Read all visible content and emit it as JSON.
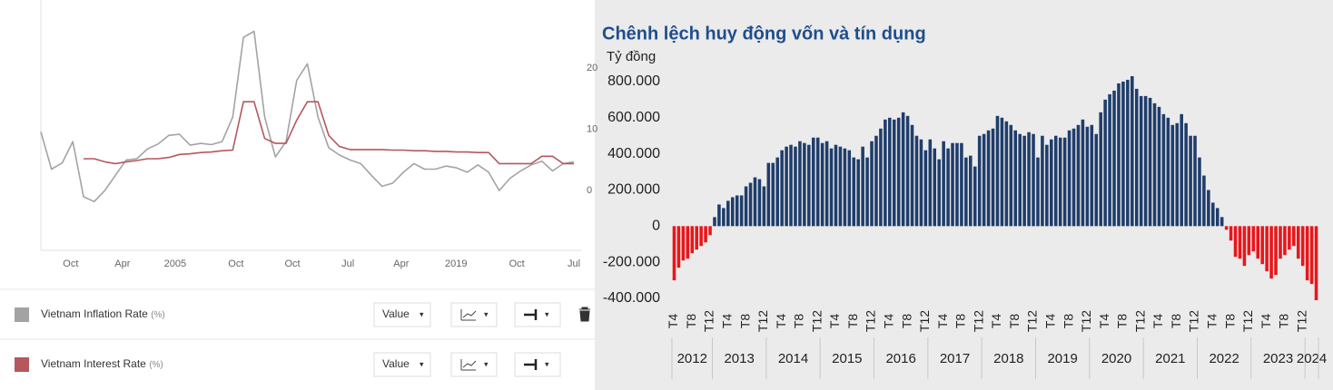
{
  "chart_data": [
    {
      "type": "line",
      "x": [
        0,
        2,
        4,
        6,
        8,
        10,
        12,
        14,
        16,
        18,
        20,
        22,
        24,
        26,
        28,
        30,
        32,
        34,
        36,
        38,
        40,
        42,
        44,
        46,
        48,
        50,
        52,
        54,
        56,
        58,
        60,
        62,
        64,
        66,
        68,
        70,
        72,
        74,
        76,
        78,
        80,
        82,
        84,
        86,
        88,
        90,
        92,
        94,
        96,
        98,
        100
      ],
      "xlim": [
        0,
        100
      ],
      "xticks": [
        {
          "value": 5.6,
          "label": "Oct"
        },
        {
          "value": 15.3,
          "label": "Apr"
        },
        {
          "value": 25.2,
          "label": "2005"
        },
        {
          "value": 36.6,
          "label": "Oct"
        },
        {
          "value": 47.2,
          "label": "Oct"
        },
        {
          "value": 57.6,
          "label": "Jul"
        },
        {
          "value": 67.6,
          "label": "Apr"
        },
        {
          "value": 77.9,
          "label": "2019"
        },
        {
          "value": 89.3,
          "label": "Oct"
        },
        {
          "value": 100,
          "label": "Jul"
        }
      ],
      "ylim": [
        -9.6,
        31.1
      ],
      "yticks": [
        0,
        10,
        20
      ],
      "series": [
        {
          "name": "Vietnam Inflation Rate",
          "unit": "(%)",
          "mode": "Value",
          "color": "#a3a3a3",
          "values": [
            9.6,
            3.5,
            4.5,
            8,
            -1,
            -1.8,
            0,
            2.5,
            5,
            5.2,
            6.8,
            7.6,
            9,
            9.2,
            7.4,
            7.7,
            7.5,
            8,
            12,
            25,
            26,
            12,
            5.5,
            8,
            18,
            20.7,
            12,
            7,
            5.8,
            5,
            4.4,
            2.5,
            0.7,
            1.2,
            3,
            4.4,
            3.5,
            3.5,
            4,
            3.7,
            3,
            4.2,
            3,
            0,
            2,
            3.2,
            4.2,
            4.8,
            3.2,
            4.4,
            4.7
          ]
        },
        {
          "name": "Vietnam Interest Rate",
          "unit": "(%)",
          "mode": "Value",
          "color": "#b5575c",
          "values": [
            null,
            null,
            null,
            null,
            5.2,
            5.2,
            4.7,
            4.4,
            4.7,
            4.9,
            5.2,
            5.2,
            5.4,
            5.9,
            6,
            6.2,
            6.3,
            6.5,
            6.6,
            14.5,
            14.5,
            8.5,
            7.7,
            7.7,
            11.5,
            14.5,
            14.5,
            9,
            7.2,
            6.7,
            6.7,
            6.7,
            6.7,
            6.6,
            6.6,
            6.5,
            6.5,
            6.4,
            6.4,
            6.3,
            6.3,
            6.2,
            6.2,
            4.4,
            4.4,
            4.4,
            4.4,
            5.6,
            5.6,
            4.4,
            4.4
          ]
        }
      ]
    },
    {
      "type": "bar",
      "title": "Chênh lệch huy động vốn và tín dụng",
      "y_label": "Tỷ đồng",
      "color": "#1f3d6b",
      "negative_color": "#e8161b",
      "categories": [
        "2012-04",
        "2012-05",
        "2012-06",
        "2012-07",
        "2012-08",
        "2012-09",
        "2012-10",
        "2012-11",
        "2012-12",
        "2013-01",
        "2013-02",
        "2013-03",
        "2013-04",
        "2013-05",
        "2013-06",
        "2013-07",
        "2013-08",
        "2013-09",
        "2013-10",
        "2013-11",
        "2013-12",
        "2014-01",
        "2014-02",
        "2014-03",
        "2014-04",
        "2014-05",
        "2014-06",
        "2014-07",
        "2014-08",
        "2014-09",
        "2014-10",
        "2014-11",
        "2014-12",
        "2015-01",
        "2015-02",
        "2015-03",
        "2015-04",
        "2015-05",
        "2015-06",
        "2015-07",
        "2015-08",
        "2015-09",
        "2015-10",
        "2015-11",
        "2015-12",
        "2016-01",
        "2016-02",
        "2016-03",
        "2016-04",
        "2016-05",
        "2016-06",
        "2016-07",
        "2016-08",
        "2016-09",
        "2016-10",
        "2016-11",
        "2016-12",
        "2017-01",
        "2017-02",
        "2017-03",
        "2017-04",
        "2017-05",
        "2017-06",
        "2017-07",
        "2017-08",
        "2017-09",
        "2017-10",
        "2017-11",
        "2017-12",
        "2018-01",
        "2018-02",
        "2018-03",
        "2018-04",
        "2018-05",
        "2018-06",
        "2018-07",
        "2018-08",
        "2018-09",
        "2018-10",
        "2018-11",
        "2018-12",
        "2019-01",
        "2019-02",
        "2019-03",
        "2019-04",
        "2019-05",
        "2019-06",
        "2019-07",
        "2019-08",
        "2019-09",
        "2019-10",
        "2019-11",
        "2019-12",
        "2020-01",
        "2020-02",
        "2020-03",
        "2020-04",
        "2020-05",
        "2020-06",
        "2020-07",
        "2020-08",
        "2020-09",
        "2020-10",
        "2020-11",
        "2020-12",
        "2021-01",
        "2021-02",
        "2021-03",
        "2021-04",
        "2021-05",
        "2021-06",
        "2021-07",
        "2021-08",
        "2021-09",
        "2021-10",
        "2021-11",
        "2021-12",
        "2022-01",
        "2022-02",
        "2022-03",
        "2022-04",
        "2022-05",
        "2022-06",
        "2022-07",
        "2022-08",
        "2022-09",
        "2022-10",
        "2022-11",
        "2022-12",
        "2023-01",
        "2023-02",
        "2023-03",
        "2023-04",
        "2023-05",
        "2023-06",
        "2023-07",
        "2023-08",
        "2023-09",
        "2023-10",
        "2023-11",
        "2023-12",
        "2024-01",
        "2024-02",
        "2024-03"
      ],
      "values": [
        -300000,
        -230000,
        -190000,
        -180000,
        -150000,
        -130000,
        -110000,
        -90000,
        -50000,
        50000,
        120000,
        100000,
        140000,
        160000,
        170000,
        170000,
        220000,
        240000,
        270000,
        260000,
        220000,
        350000,
        350000,
        380000,
        420000,
        440000,
        450000,
        440000,
        470000,
        460000,
        450000,
        490000,
        490000,
        460000,
        470000,
        430000,
        450000,
        440000,
        430000,
        420000,
        380000,
        370000,
        440000,
        380000,
        470000,
        500000,
        540000,
        590000,
        600000,
        590000,
        600000,
        630000,
        610000,
        560000,
        500000,
        480000,
        420000,
        480000,
        430000,
        370000,
        470000,
        430000,
        460000,
        460000,
        460000,
        380000,
        390000,
        330000,
        500000,
        510000,
        530000,
        540000,
        610000,
        600000,
        580000,
        560000,
        530000,
        510000,
        500000,
        520000,
        510000,
        380000,
        500000,
        450000,
        480000,
        500000,
        490000,
        490000,
        530000,
        540000,
        560000,
        590000,
        550000,
        560000,
        510000,
        630000,
        700000,
        730000,
        750000,
        790000,
        800000,
        810000,
        830000,
        760000,
        720000,
        720000,
        710000,
        680000,
        660000,
        620000,
        600000,
        560000,
        570000,
        620000,
        570000,
        500000,
        500000,
        380000,
        280000,
        200000,
        130000,
        100000,
        50000,
        -20000,
        -80000,
        -170000,
        -180000,
        -220000,
        -160000,
        -140000,
        -180000,
        -210000,
        -250000,
        -290000,
        -270000,
        -180000,
        -160000,
        -130000,
        -110000,
        -180000,
        -220000,
        -300000,
        -320000,
        -410000
      ],
      "xticks": [
        {
          "value": "2012-04",
          "label": "T4"
        },
        {
          "value": "2012-08",
          "label": "T8"
        },
        {
          "value": "2012-12",
          "label": "T12"
        },
        {
          "value": "2013-04",
          "label": "T4"
        },
        {
          "value": "2013-08",
          "label": "T8"
        },
        {
          "value": "2013-12",
          "label": "T12"
        },
        {
          "value": "2014-04",
          "label": "T4"
        },
        {
          "value": "2014-08",
          "label": "T8"
        },
        {
          "value": "2014-12",
          "label": "T12"
        },
        {
          "value": "2015-04",
          "label": "T4"
        },
        {
          "value": "2015-08",
          "label": "T8"
        },
        {
          "value": "2015-12",
          "label": "T12"
        },
        {
          "value": "2016-04",
          "label": "T4"
        },
        {
          "value": "2016-08",
          "label": "T8"
        },
        {
          "value": "2016-12",
          "label": "T12"
        },
        {
          "value": "2017-04",
          "label": "T4"
        },
        {
          "value": "2017-08",
          "label": "T8"
        },
        {
          "value": "2017-12",
          "label": "T12"
        },
        {
          "value": "2018-04",
          "label": "T4"
        },
        {
          "value": "2018-08",
          "label": "T8"
        },
        {
          "value": "2018-12",
          "label": "T12"
        },
        {
          "value": "2019-04",
          "label": "T4"
        },
        {
          "value": "2019-08",
          "label": "T8"
        },
        {
          "value": "2019-12",
          "label": "T12"
        },
        {
          "value": "2020-04",
          "label": "T4"
        },
        {
          "value": "2020-08",
          "label": "T8"
        },
        {
          "value": "2020-12",
          "label": "T12"
        },
        {
          "value": "2021-04",
          "label": "T4"
        },
        {
          "value": "2021-08",
          "label": "T8"
        },
        {
          "value": "2021-12",
          "label": "T12"
        },
        {
          "value": "2022-04",
          "label": "T4"
        },
        {
          "value": "2022-08",
          "label": "T8"
        },
        {
          "value": "2022-12",
          "label": "T12"
        },
        {
          "value": "2023-04",
          "label": "T4"
        },
        {
          "value": "2023-08",
          "label": "T8"
        },
        {
          "value": "2023-12",
          "label": "T12"
        }
      ],
      "year_labels": [
        "2012",
        "2013",
        "2014",
        "2015",
        "2016",
        "2017",
        "2018",
        "2019",
        "2020",
        "2021",
        "2022",
        "2023",
        "2024"
      ],
      "ylim": [
        -420000,
        860000
      ],
      "yticks": [
        {
          "value": 800000,
          "label": "800.000"
        },
        {
          "value": 600000,
          "label": "600.000"
        },
        {
          "value": 400000,
          "label": "400.000"
        },
        {
          "value": 200000,
          "label": "200.000"
        },
        0,
        {
          "value": -200000,
          "label": "-200.000"
        },
        {
          "value": -400000,
          "label": "-400.000"
        }
      ]
    }
  ]
}
